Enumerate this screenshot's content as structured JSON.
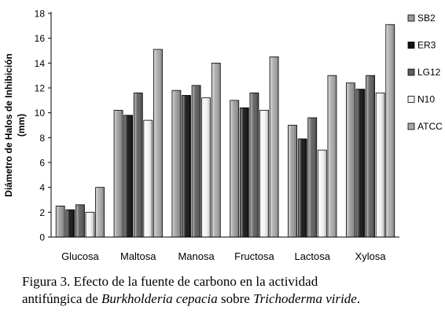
{
  "chart_data": {
    "type": "bar",
    "categories": [
      "Glucosa",
      "Maltosa",
      "Manosa",
      "Fructosa",
      "Lactosa",
      "Xylosa"
    ],
    "series": [
      {
        "name": "SB2",
        "values": [
          2.5,
          10.2,
          11.8,
          11.0,
          9.0,
          12.4
        ],
        "color": "#9a9a9a"
      },
      {
        "name": "ER3",
        "values": [
          2.2,
          9.8,
          11.4,
          10.4,
          7.9,
          11.9
        ],
        "color": "#111111"
      },
      {
        "name": "LG12",
        "values": [
          2.6,
          11.6,
          12.2,
          11.6,
          9.6,
          13.0
        ],
        "color": "#5c5c5c"
      },
      {
        "name": "N10",
        "values": [
          2.0,
          9.4,
          11.2,
          10.2,
          7.0,
          11.6
        ],
        "color": "#f4f4f4"
      },
      {
        "name": "ATCC",
        "values": [
          4.0,
          15.1,
          14.0,
          14.5,
          13.0,
          17.1
        ],
        "color": "#a8a8a8"
      }
    ],
    "ylabel": "Diámetro de Halos de Inhibición (mm)",
    "ylabel_lines": [
      "Diámetro de Halos de Inhibición",
      "(mm)"
    ],
    "ylim": [
      0,
      18
    ],
    "yticks": [
      "0",
      "2",
      "4",
      "6",
      "8",
      "10",
      "12",
      "14",
      "16",
      "18"
    ],
    "grid": false,
    "legend_position": "right"
  },
  "caption": {
    "line1": "Figura 3. Efecto de la fuente de carbono en la actividad",
    "line2_prefix": "antifúngica de ",
    "line2_species1": "Burkholderia cepacia",
    "line2_middle": " sobre ",
    "line2_species2": "Trichoderma viride",
    "line2_suffix": "."
  }
}
